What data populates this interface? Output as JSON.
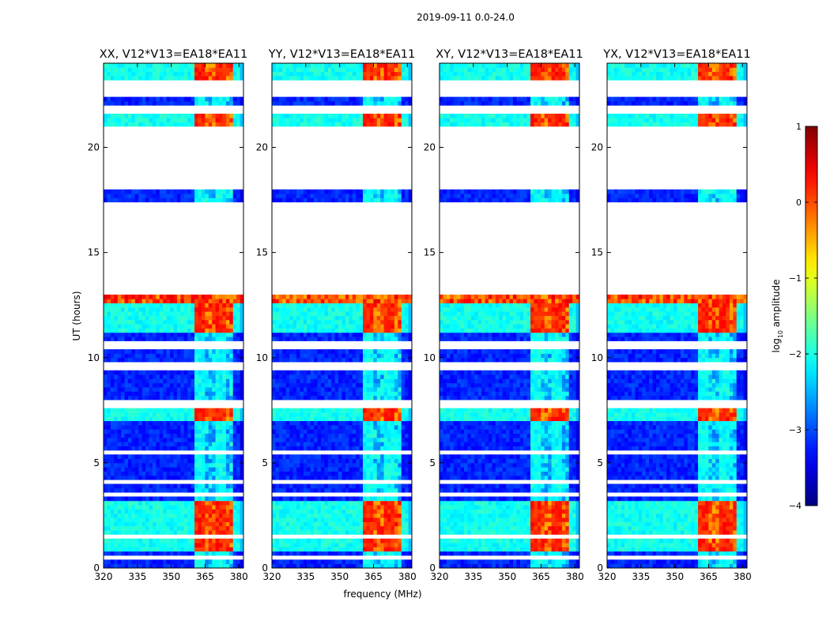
{
  "chart_data": {
    "type": "heatmap",
    "title": "2019-09-11 0.0-24.0",
    "xlabel": "frequency (MHz)",
    "ylabel": "UT (hours)",
    "xlim": [
      320,
      382
    ],
    "ylim": [
      0,
      24
    ],
    "x_ticks": [
      320,
      335,
      350,
      365,
      380
    ],
    "y_ticks": [
      0,
      5,
      10,
      15,
      20
    ],
    "panels": [
      {
        "title": "XX, V12*V13=EA18*EA11"
      },
      {
        "title": "YY, V12*V13=EA18*EA11"
      },
      {
        "title": "XY, V12*V13=EA18*EA11"
      },
      {
        "title": "YX, V12*V13=EA18*EA11"
      }
    ],
    "colorbar": {
      "label_main": "log",
      "label_sub": "10",
      "label_rest": " amplitude",
      "range": [
        -4,
        1
      ],
      "ticks": [
        1,
        0,
        -1,
        -2,
        -3,
        -4
      ],
      "tick_labels": [
        "1",
        "0",
        "−1",
        "−2",
        "−3",
        "−4"
      ],
      "colormap": "jet"
    },
    "data_gaps_hours": [
      [
        18.1,
        21.0
      ],
      [
        13.0,
        17.3
      ]
    ],
    "bright_band_mhz": [
      360,
      378
    ],
    "rfi_hours": [
      [
        11.2,
        13.0
      ],
      [
        23.2,
        24.0
      ],
      [
        21.1,
        21.6
      ],
      [
        7.0,
        7.5
      ],
      [
        0.8,
        3.3
      ]
    ]
  }
}
